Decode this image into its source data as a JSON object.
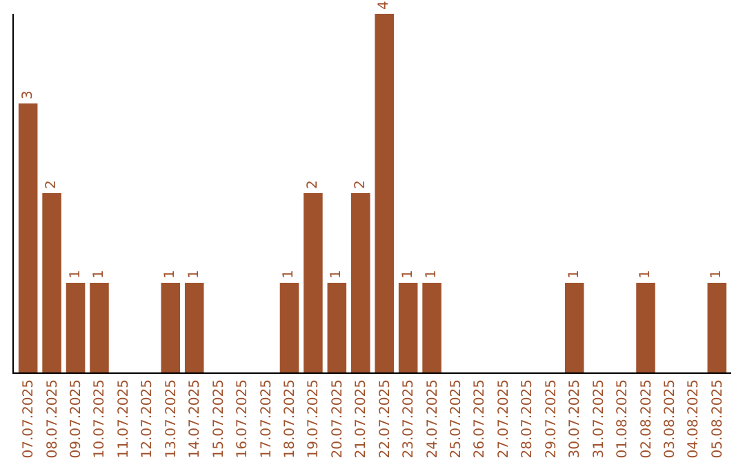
{
  "chart_data": {
    "type": "bar",
    "categories": [
      "07.07.2025",
      "08.07.2025",
      "09.07.2025",
      "10.07.2025",
      "11.07.2025",
      "12.07.2025",
      "13.07.2025",
      "14.07.2025",
      "15.07.2025",
      "16.07.2025",
      "17.07.2025",
      "18.07.2025",
      "19.07.2025",
      "20.07.2025",
      "21.07.2025",
      "22.07.2025",
      "23.07.2025",
      "24.07.2025",
      "25.07.2025",
      "26.07.2025",
      "27.07.2025",
      "28.07.2025",
      "29.07.2025",
      "30.07.2025",
      "31.07.2025",
      "01.08.2025",
      "02.08.2025",
      "03.08.2025",
      "04.08.2025",
      "05.08.2025"
    ],
    "values": [
      3,
      2,
      1,
      1,
      0,
      0,
      1,
      1,
      0,
      0,
      0,
      1,
      2,
      1,
      2,
      4,
      1,
      1,
      0,
      0,
      0,
      0,
      0,
      1,
      0,
      0,
      1,
      0,
      0,
      1
    ],
    "value_labels": [
      "3",
      "2",
      "1",
      "1",
      null,
      null,
      "1",
      "1",
      null,
      null,
      null,
      "1",
      "2",
      "1",
      "2",
      "4",
      "1",
      "1",
      null,
      null,
      null,
      null,
      null,
      "1",
      null,
      null,
      "1",
      null,
      null,
      "1"
    ],
    "color": "#a0522d",
    "ylim": [
      0,
      4
    ],
    "tick_labels": "x",
    "grid": false,
    "legend": false
  }
}
